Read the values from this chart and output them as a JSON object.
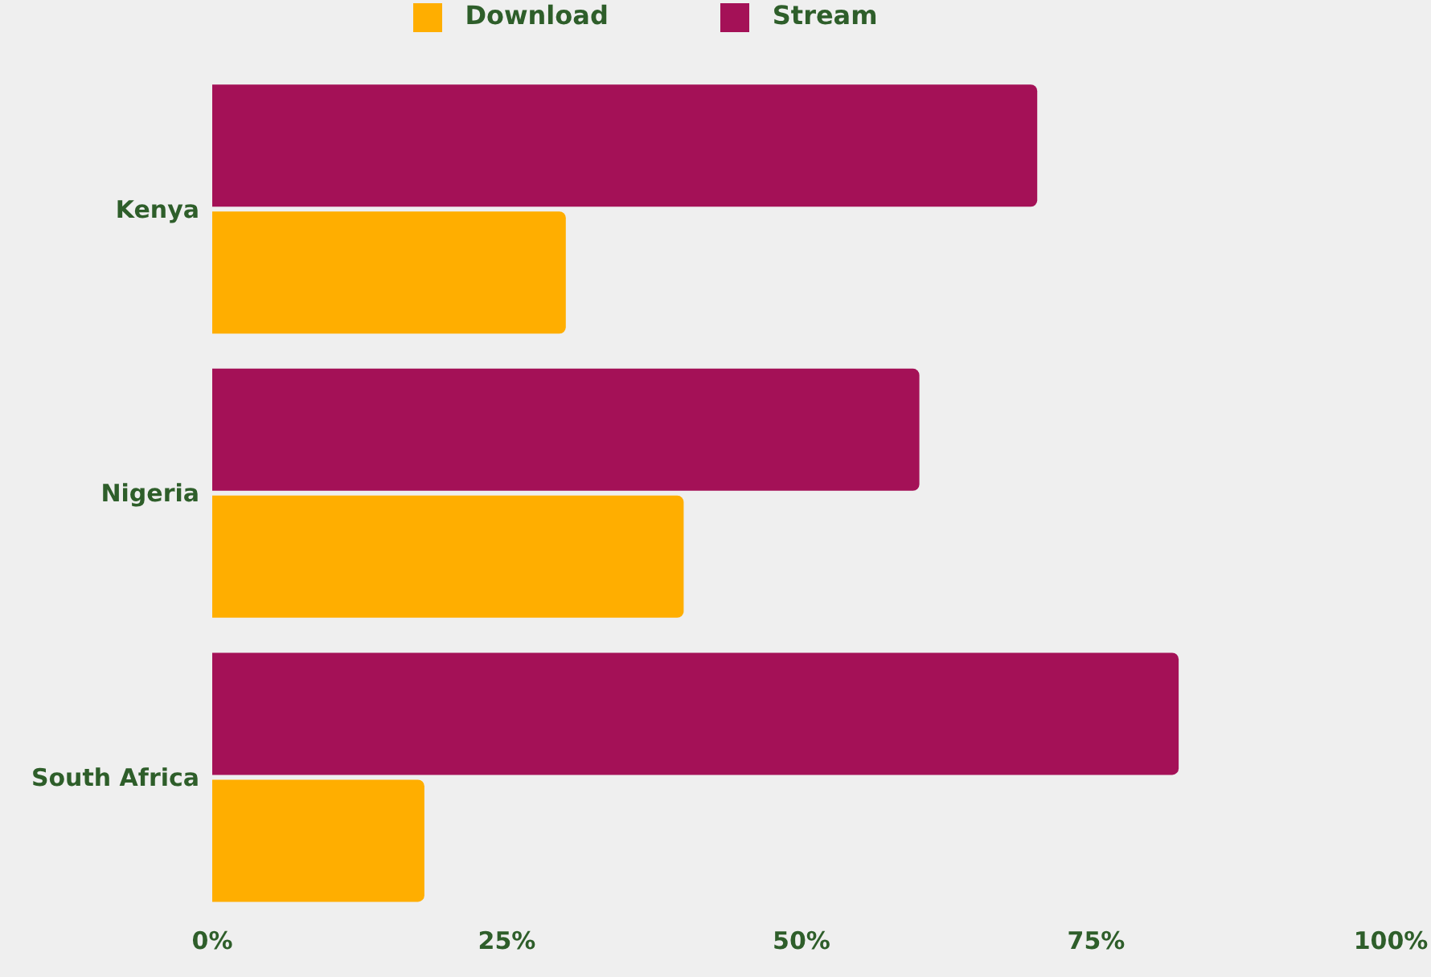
{
  "chart_data": {
    "type": "bar",
    "orientation": "horizontal",
    "categories": [
      "Kenya",
      "Nigeria",
      "South Africa"
    ],
    "series": [
      {
        "name": "Stream",
        "color": "#a41157",
        "values": [
          70,
          60,
          82
        ]
      },
      {
        "name": "Download",
        "color": "#ffae00",
        "values": [
          30,
          40,
          18
        ]
      }
    ],
    "xlim": [
      0,
      100
    ],
    "xticks": [
      {
        "value": 0,
        "label": "0%"
      },
      {
        "value": 25,
        "label": "25%"
      },
      {
        "value": 50,
        "label": "50%"
      },
      {
        "value": 75,
        "label": "75%"
      },
      {
        "value": 100,
        "label": "100%"
      }
    ],
    "grid": false,
    "legend": "top"
  }
}
